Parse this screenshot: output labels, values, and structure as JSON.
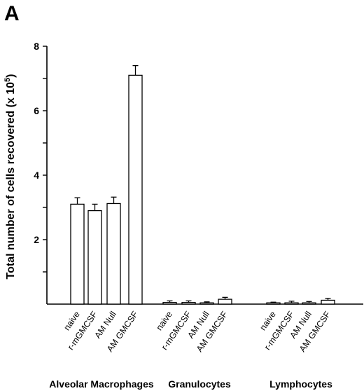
{
  "panel_label": "A",
  "chart_data": {
    "type": "bar",
    "title": "",
    "ylabel": "Total number of cells recovered (x 10",
    "ylabel_exponent": "5",
    "ylabel_close": ")",
    "ylim": [
      0,
      8
    ],
    "yticks": [
      0,
      1,
      2,
      3,
      4,
      5,
      6,
      7,
      8
    ],
    "ytick_labels": [
      "",
      "",
      "2",
      "",
      "4",
      "",
      "6",
      "",
      "8"
    ],
    "grid": false,
    "groups": [
      {
        "name": "Alveolar Macrophages",
        "categories": [
          "naive",
          "r-mGMCSF",
          "AM Null",
          "AM GMCSF"
        ],
        "values": [
          3.1,
          2.9,
          3.12,
          7.1
        ],
        "errors": [
          0.2,
          0.2,
          0.2,
          0.3
        ]
      },
      {
        "name": "Granulocytes",
        "categories": [
          "naive",
          "r-mGMCSF",
          "AM Null",
          "AM GMCSF"
        ],
        "values": [
          0.05,
          0.05,
          0.04,
          0.15
        ],
        "errors": [
          0.05,
          0.05,
          0.03,
          0.06
        ]
      },
      {
        "name": "Lymphocytes",
        "categories": [
          "naive",
          "r-mGMCSF",
          "AM Null",
          "AM GMCSF"
        ],
        "values": [
          0.04,
          0.04,
          0.04,
          0.12
        ],
        "errors": [
          0.02,
          0.05,
          0.04,
          0.06
        ]
      }
    ]
  }
}
